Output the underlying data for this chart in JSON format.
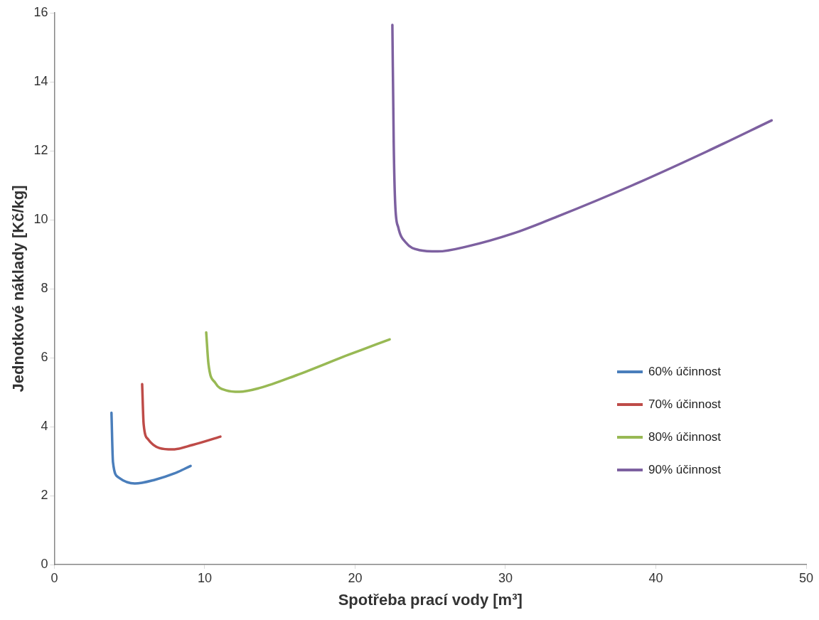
{
  "chart_data": {
    "type": "line",
    "xlabel": "Spotřeba prací vody [m³]",
    "ylabel": "Jednotkové náklady [Kč/kg]",
    "xlim": [
      0,
      50
    ],
    "xticks": [
      0,
      10,
      20,
      30,
      40,
      50
    ],
    "ylim": [
      0,
      16
    ],
    "yticks": [
      0,
      2,
      4,
      6,
      8,
      10,
      12,
      14,
      16
    ],
    "grid": false,
    "legend": "right",
    "marker": "none",
    "line_style": "solid",
    "series": [
      {
        "name": "60% účinnost",
        "color": "#4a7ebb",
        "x": [
          3.8,
          3.9,
          4.26,
          5.35,
          6.7,
          7.97,
          9.06
        ],
        "values": [
          4.4,
          2.97,
          2.53,
          2.35,
          2.46,
          2.64,
          2.86
        ]
      },
      {
        "name": "70% účinnost",
        "color": "#be4b48",
        "x": [
          5.84,
          5.94,
          6.24,
          6.98,
          7.87,
          9.2,
          11.04
        ],
        "values": [
          5.23,
          4.07,
          3.63,
          3.38,
          3.34,
          3.47,
          3.71
        ]
      },
      {
        "name": "80% účinnost",
        "color": "#98b954",
        "x": [
          10.1,
          10.25,
          10.7,
          11.44,
          12.3,
          13.66,
          16.1,
          19.6,
          22.3
        ],
        "values": [
          6.73,
          5.82,
          5.27,
          5.05,
          5.01,
          5.12,
          5.49,
          6.09,
          6.53
        ]
      },
      {
        "name": "90% účinnost",
        "color": "#7d60a0",
        "x": [
          22.48,
          22.57,
          22.67,
          22.87,
          23.37,
          24.26,
          25.5,
          27.5,
          30.5,
          33.5,
          38.4,
          43.4,
          47.7
        ],
        "values": [
          15.65,
          12.2,
          10.44,
          9.78,
          9.34,
          9.12,
          9.08,
          9.23,
          9.6,
          10.1,
          10.99,
          11.98,
          12.88
        ]
      }
    ]
  }
}
